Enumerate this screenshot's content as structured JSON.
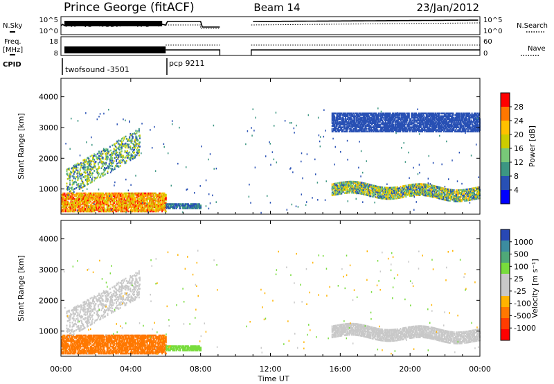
{
  "header": {
    "station": "Prince George (fitACF)",
    "beam": "Beam 14",
    "date": "23/Jan/2012"
  },
  "aux_panels": {
    "nsky_label": "N.Sky",
    "nsearch_label": "N.Search",
    "freq_label_1": "Freq.",
    "freq_label_2": "[MHz]",
    "nave_label": "Nave",
    "cpid_label": "CPID",
    "nsky_ticks": [
      "10^5",
      "10^0"
    ],
    "nsearch_ticks": [
      "10^5",
      "10^0"
    ],
    "freq_ticks": [
      "18",
      "8"
    ],
    "nave_ticks": [
      "60",
      "0"
    ],
    "cpid_segments": [
      {
        "name": "twofsound -3501",
        "start": 0,
        "end": 6
      },
      {
        "name": "pcp 9211",
        "start": 6,
        "end": 24
      }
    ]
  },
  "time_axis": {
    "xlabel": "Time UT",
    "ticks": [
      "00:00",
      "04:00",
      "08:00",
      "12:00",
      "16:00",
      "20:00",
      "00:00"
    ],
    "tick_hours": [
      0,
      4,
      8,
      12,
      16,
      20,
      24
    ]
  },
  "chart_data": [
    {
      "type": "heatmap",
      "name_panel": "power",
      "ylabel": "Slant Range [km]",
      "colorbar_label": "Power [dB]",
      "y_ticks": [
        1000,
        2000,
        3000,
        4000
      ],
      "ylim": [
        180,
        4600
      ],
      "xlim_hours": [
        0,
        24
      ],
      "colorbar_ticks": [
        "28",
        "24",
        "20",
        "16",
        "12",
        "8",
        "4"
      ],
      "colorbar_colors": [
        "#ff0000",
        "#ff7700",
        "#ffc000",
        "#cccc00",
        "#78c878",
        "#3c9682",
        "#2850b4",
        "#0000ff"
      ],
      "echo_regions": [
        {
          "hours": [
            0,
            6
          ],
          "range_km": [
            300,
            900
          ],
          "power_db": [
            16,
            30
          ]
        },
        {
          "hours": [
            0.3,
            4.5
          ],
          "range_km": [
            1000,
            2800
          ],
          "power_db": [
            4,
            20
          ]
        },
        {
          "hours": [
            6,
            8
          ],
          "range_km": [
            400,
            550
          ],
          "power_db": [
            4,
            12
          ]
        },
        {
          "hours": [
            15.5,
            24
          ],
          "range_km": [
            700,
            1500
          ],
          "power_db": [
            4,
            24
          ]
        },
        {
          "hours": [
            15.5,
            24
          ],
          "range_km": [
            2900,
            3500
          ],
          "power_db": [
            4,
            8
          ]
        }
      ]
    },
    {
      "type": "heatmap",
      "name_panel": "velocity",
      "ylabel": "Slant Range [km]",
      "colorbar_label": "Velocity [m s⁻¹]",
      "y_ticks": [
        1000,
        2000,
        3000,
        4000
      ],
      "ylim": [
        180,
        4600
      ],
      "xlim_hours": [
        0,
        24
      ],
      "colorbar_ticks": [
        "1000",
        "500",
        "100",
        "25",
        "-25",
        "-100",
        "-500",
        "-1000"
      ],
      "colorbar_colors": [
        "#2848b4",
        "#3c8ca0",
        "#4fa878",
        "#78dc3c",
        "#c8c8c8",
        "#c8c8c8",
        "#ffb400",
        "#ff7800",
        "#ff3c00",
        "#ff0000"
      ],
      "echo_regions": [
        {
          "hours": [
            0,
            6
          ],
          "range_km": [
            300,
            900
          ],
          "velocity_ms": [
            -500,
            -100
          ]
        },
        {
          "hours": [
            0.3,
            4.5
          ],
          "range_km": [
            1000,
            2800
          ],
          "velocity_ms": [
            -25,
            25
          ]
        },
        {
          "hours": [
            6,
            8
          ],
          "range_km": [
            400,
            550
          ],
          "velocity_ms": [
            25,
            100
          ]
        },
        {
          "hours": [
            15.5,
            24
          ],
          "range_km": [
            700,
            1500
          ],
          "velocity_ms": [
            -25,
            25
          ]
        }
      ]
    }
  ]
}
